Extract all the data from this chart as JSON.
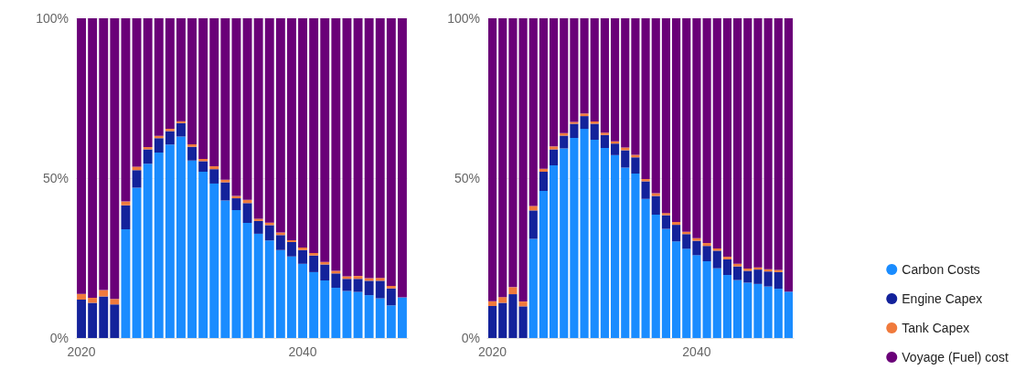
{
  "chart_data": [
    {
      "type": "bar",
      "stacked": true,
      "categories": [
        "2020",
        null,
        null,
        null,
        null,
        null,
        null,
        null,
        null,
        null,
        null,
        null,
        null,
        null,
        null,
        null,
        null,
        null,
        null,
        null,
        "2040",
        null,
        null,
        null,
        null,
        null,
        null,
        null,
        null,
        null
      ],
      "ylim": [
        0,
        100
      ],
      "yticks": [
        {
          "value": 0,
          "label": "0%"
        },
        {
          "value": 50,
          "label": "50%"
        },
        {
          "value": 100,
          "label": "100%"
        }
      ],
      "grid": "y",
      "series": [
        {
          "color": "#1a8cff",
          "values": [
            0,
            0,
            0,
            0,
            34,
            47,
            54.5,
            58,
            60.5,
            63,
            55.5,
            52,
            48.3,
            43,
            40,
            36,
            32.6,
            30.5,
            27.5,
            25.5,
            23.2,
            20.6,
            18,
            15.7,
            14.7,
            14.4,
            13.4,
            12.4,
            10.2,
            12.7
          ]
        },
        {
          "color": "#13229b",
          "values": [
            12,
            11,
            13,
            10.5,
            7.5,
            5.5,
            4.5,
            4.5,
            4.2,
            4.2,
            4.3,
            3.3,
            4.5,
            5.7,
            3.7,
            6.2,
            4,
            4.8,
            4.7,
            4.5,
            4.3,
            5.2,
            5,
            4.5,
            3.8,
            4.1,
            4.5,
            5.5,
            5.3,
            0
          ]
        },
        {
          "color": "#f07a3c",
          "values": [
            1.8,
            1.6,
            2,
            1.7,
            1.2,
            1.1,
            0.7,
            0.7,
            0.7,
            0.6,
            0.8,
            0.7,
            0.9,
            0.8,
            0.7,
            1,
            0.7,
            0.8,
            0.8,
            0.6,
            0.8,
            0.8,
            0.8,
            0.8,
            0.8,
            0.9,
            0.8,
            0.9,
            0.8,
            0
          ]
        },
        {
          "color": "#6a0078",
          "values": [
            86.2,
            87.4,
            85,
            87.8,
            57.3,
            46.4,
            40.3,
            36.8,
            34.6,
            32.2,
            39.4,
            44,
            46.3,
            50.5,
            55.6,
            56.8,
            62.7,
            63.9,
            67,
            69.4,
            71.7,
            73.4,
            76.2,
            79,
            80.7,
            80.6,
            81.3,
            81.2,
            83.7,
            87.3
          ]
        }
      ]
    },
    {
      "type": "bar",
      "stacked": true,
      "categories": [
        "2020",
        null,
        null,
        null,
        null,
        null,
        null,
        null,
        null,
        null,
        null,
        null,
        null,
        null,
        null,
        null,
        null,
        null,
        null,
        null,
        "2040",
        null,
        null,
        null,
        null,
        null,
        null,
        null,
        null,
        null
      ],
      "ylim": [
        0,
        100
      ],
      "yticks": [
        {
          "value": 0,
          "label": "0%"
        },
        {
          "value": 50,
          "label": "50%"
        },
        {
          "value": 100,
          "label": "100%"
        }
      ],
      "grid": "y",
      "legend": "right",
      "series": [
        {
          "name": "Carbon Costs",
          "color": "#1a8cff",
          "values": [
            0,
            0,
            0,
            0,
            31,
            46,
            54,
            59.3,
            62.6,
            65.4,
            62,
            59.4,
            57.2,
            53.3,
            51.4,
            43.5,
            38.6,
            34.1,
            30.2,
            27.9,
            25.9,
            24,
            21.8,
            19.7,
            18.1,
            17.3,
            16.9,
            16.1,
            15.4,
            14.5
          ]
        },
        {
          "name": "Engine Capex",
          "color": "#13229b",
          "values": [
            10,
            11,
            13.7,
            9.9,
            8.9,
            6,
            5,
            4,
            4.4,
            4,
            5,
            4.1,
            3.6,
            5.4,
            5.1,
            5.5,
            5.8,
            4.3,
            5.2,
            4.6,
            4.5,
            4.8,
            5.5,
            4.9,
            4.3,
            3.7,
            4.5,
            4.7,
            5.2,
            0
          ]
        },
        {
          "name": "Tank Capex",
          "color": "#f07a3c",
          "values": [
            1.5,
            1.8,
            2.2,
            1.5,
            1.4,
            0.9,
            0.9,
            0.8,
            0.6,
            0.8,
            0.7,
            0.7,
            0.7,
            0.9,
            0.8,
            0.7,
            0.9,
            0.7,
            0.9,
            0.7,
            0.8,
            0.9,
            0.7,
            0.8,
            0.8,
            0.7,
            0.7,
            0.7,
            0.7,
            0
          ]
        },
        {
          "name": "Voyage (Fuel) cost",
          "color": "#6a0078",
          "values": [
            88.5,
            87.2,
            84.1,
            88.6,
            58.7,
            47.1,
            40.1,
            35.9,
            32.4,
            29.8,
            32.3,
            35.8,
            38.5,
            40.4,
            42.7,
            50.3,
            54.7,
            60.9,
            63.7,
            66.8,
            68.8,
            70.3,
            72,
            74.6,
            76.8,
            78.3,
            77.9,
            78.5,
            78.7,
            85.5
          ]
        }
      ]
    }
  ]
}
